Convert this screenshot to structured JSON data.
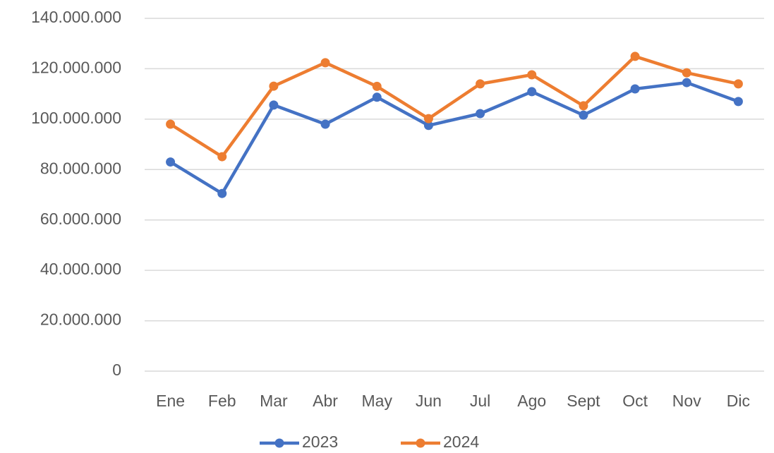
{
  "chart_data": {
    "type": "line",
    "categories": [
      "Ene",
      "Feb",
      "Mar",
      "Abr",
      "May",
      "Jun",
      "Jul",
      "Ago",
      "Sept",
      "Oct",
      "Nov",
      "Dic"
    ],
    "series": [
      {
        "name": "2023",
        "color": "#4472c4",
        "values": [
          83000000,
          70500000,
          105600000,
          98000000,
          108700000,
          97500000,
          102200000,
          110900000,
          101600000,
          112000000,
          114500000,
          107000000
        ]
      },
      {
        "name": "2024",
        "color": "#ed7d31",
        "values": [
          98000000,
          85100000,
          113100000,
          122400000,
          113000000,
          100200000,
          114000000,
          117600000,
          105300000,
          124900000,
          118400000,
          114000000
        ]
      }
    ],
    "ylim": [
      0,
      140000000
    ],
    "yticks": [
      0,
      {
        "value": 20000000,
        "label": "20.000.000"
      },
      {
        "value": 40000000,
        "label": "40.000.000"
      },
      {
        "value": 60000000,
        "label": "60.000.000"
      },
      {
        "value": 80000000,
        "label": "80.000.000"
      },
      {
        "value": 100000000,
        "label": "100.000.000"
      },
      {
        "value": 120000000,
        "label": "120.000.000"
      },
      {
        "value": 140000000,
        "label": "140.000.000"
      }
    ],
    "grid": true,
    "legend": "bottom"
  }
}
